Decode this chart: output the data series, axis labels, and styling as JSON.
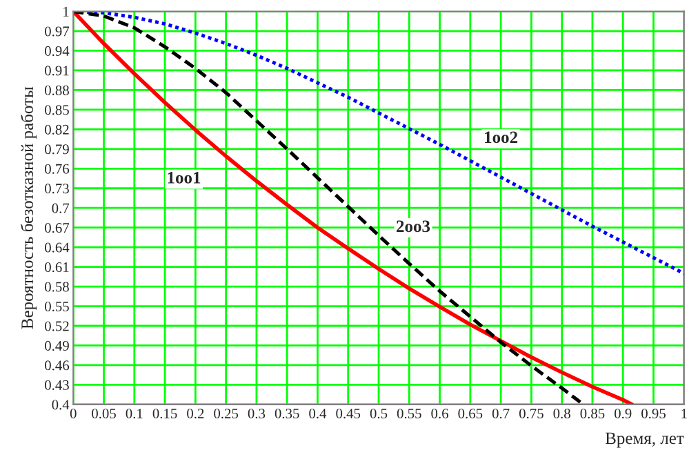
{
  "chart_data": {
    "type": "line",
    "xlabel": "Время, лет",
    "ylabel": "Вероятность безотказной работы",
    "xlim": [
      0,
      1
    ],
    "ylim": [
      0.4,
      1
    ],
    "xticks": [
      0,
      0.05,
      0.1,
      0.15,
      0.2,
      0.25,
      0.3,
      0.35,
      0.4,
      0.45,
      0.5,
      0.55,
      0.6,
      0.65,
      0.7,
      0.75,
      0.8,
      0.85,
      0.9,
      0.95,
      1
    ],
    "yticks": [
      0.4,
      0.43,
      0.46,
      0.49,
      0.52,
      0.55,
      0.58,
      0.61,
      0.64,
      0.67,
      0.7,
      0.73,
      0.76,
      0.79,
      0.82,
      0.85,
      0.88,
      0.91,
      0.94,
      0.97,
      1
    ],
    "grid": true,
    "legend": false,
    "series": [
      {
        "name": "1oo1",
        "color": "#ff0000",
        "line_style": "solid",
        "x": [
          0,
          0.05,
          0.1,
          0.15,
          0.2,
          0.25,
          0.3,
          0.35,
          0.4,
          0.45,
          0.5,
          0.55,
          0.6,
          0.65,
          0.7,
          0.75,
          0.8,
          0.85,
          0.9,
          0.915
        ],
        "values": [
          1,
          0.951,
          0.905,
          0.861,
          0.819,
          0.779,
          0.741,
          0.705,
          0.67,
          0.638,
          0.607,
          0.577,
          0.549,
          0.522,
          0.497,
          0.472,
          0.449,
          0.427,
          0.407,
          0.4
        ]
      },
      {
        "name": "1oo2",
        "color": "#0000ff",
        "line_style": "dotted",
        "x": [
          0,
          0.05,
          0.1,
          0.15,
          0.2,
          0.25,
          0.3,
          0.35,
          0.4,
          0.45,
          0.5,
          0.55,
          0.6,
          0.65,
          0.7,
          0.75,
          0.8,
          0.85,
          0.9,
          0.95,
          1
        ],
        "values": [
          1,
          0.998,
          0.991,
          0.981,
          0.967,
          0.951,
          0.933,
          0.913,
          0.891,
          0.869,
          0.845,
          0.821,
          0.797,
          0.772,
          0.747,
          0.722,
          0.697,
          0.672,
          0.648,
          0.624,
          0.6
        ]
      },
      {
        "name": "2oo3",
        "color": "#000000",
        "line_style": "dashed",
        "x": [
          0,
          0.05,
          0.1,
          0.15,
          0.2,
          0.25,
          0.3,
          0.35,
          0.4,
          0.45,
          0.5,
          0.55,
          0.6,
          0.65,
          0.7,
          0.75,
          0.8,
          0.835
        ],
        "values": [
          1,
          0.993,
          0.975,
          0.946,
          0.913,
          0.876,
          0.833,
          0.79,
          0.746,
          0.702,
          0.658,
          0.615,
          0.573,
          0.534,
          0.495,
          0.459,
          0.425,
          0.4
        ]
      }
    ]
  }
}
